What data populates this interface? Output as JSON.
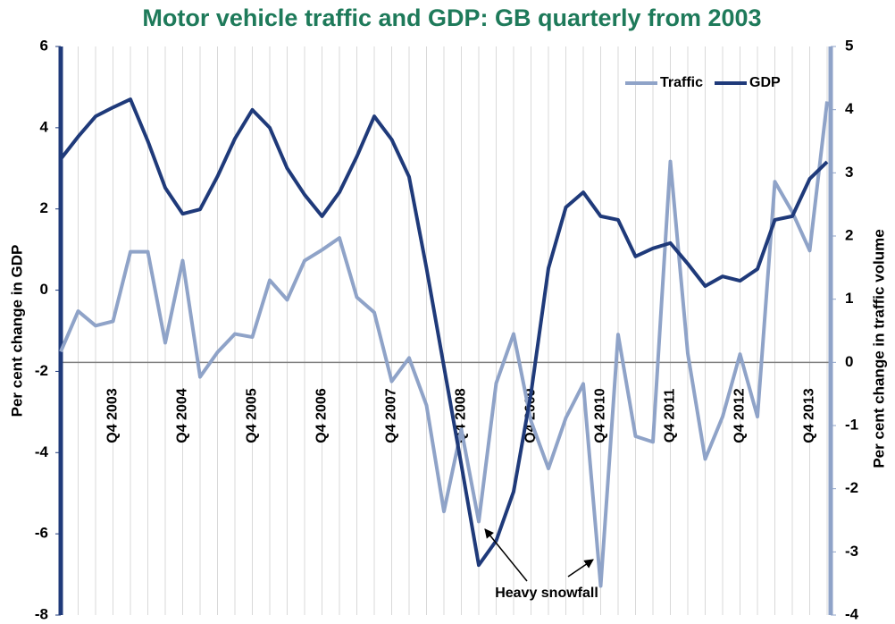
{
  "chart_data": {
    "type": "line",
    "title": "Motor vehicle traffic and GDP: GB quarterly from 2003",
    "y_label": "Per cent change in GDP",
    "y2_label": "Per cent change in traffic volume",
    "categories": [
      null,
      null,
      null,
      "Q4 2003",
      null,
      null,
      null,
      "Q4 2004",
      null,
      null,
      null,
      "Q4 2005",
      null,
      null,
      null,
      "Q4 2006",
      null,
      null,
      null,
      "Q4 2007",
      null,
      null,
      null,
      "Q4 2008",
      null,
      null,
      null,
      "Q4 2009",
      null,
      null,
      null,
      "Q4 2010",
      null,
      null,
      null,
      "Q4 2011",
      null,
      null,
      null,
      "Q4 2012",
      null,
      null,
      null,
      "Q4 2013",
      null
    ],
    "series": [
      {
        "name": "Traffic",
        "color": "#8fa3c8",
        "axis": "y2",
        "values": [
          0.17,
          0.81,
          0.58,
          0.65,
          1.75,
          1.75,
          0.31,
          1.61,
          -0.23,
          0.16,
          0.45,
          0.4,
          1.3,
          0.99,
          1.61,
          1.78,
          1.97,
          1.03,
          0.79,
          -0.3,
          0.07,
          -0.68,
          -2.36,
          -1.06,
          -2.52,
          -0.33,
          0.45,
          -0.93,
          -1.68,
          -0.88,
          -0.34,
          -3.54,
          0.44,
          -1.17,
          -1.26,
          3.18,
          0.14,
          -1.53,
          -0.86,
          0.13,
          -0.86,
          2.86,
          2.38,
          1.77,
          4.13
        ]
      },
      {
        "name": "GDP",
        "color": "#1f3a7a",
        "values": [
          3.23,
          3.78,
          4.28,
          4.5,
          4.7,
          3.67,
          2.52,
          1.88,
          1.99,
          2.8,
          3.73,
          4.44,
          4.0,
          3.0,
          2.35,
          1.82,
          2.41,
          3.29,
          4.28,
          3.71,
          2.79,
          0.54,
          -1.88,
          -4.3,
          -6.77,
          -6.17,
          -4.96,
          -2.54,
          0.54,
          2.04,
          2.41,
          1.82,
          1.73,
          0.83,
          1.03,
          1.16,
          0.65,
          0.1,
          0.34,
          0.23,
          0.52,
          1.73,
          1.82,
          2.74,
          3.16
        ]
      }
    ],
    "ylim": [
      -8,
      6
    ],
    "yticks": [
      -8,
      -6,
      -4,
      -2,
      0,
      2,
      4,
      6
    ],
    "y2lim": [
      -4,
      5
    ],
    "y2ticks": [
      -4,
      -3,
      -2,
      -1,
      0,
      1,
      2,
      3,
      4,
      5
    ],
    "legend": "top-right",
    "annotation": "Heavy snowfall"
  }
}
